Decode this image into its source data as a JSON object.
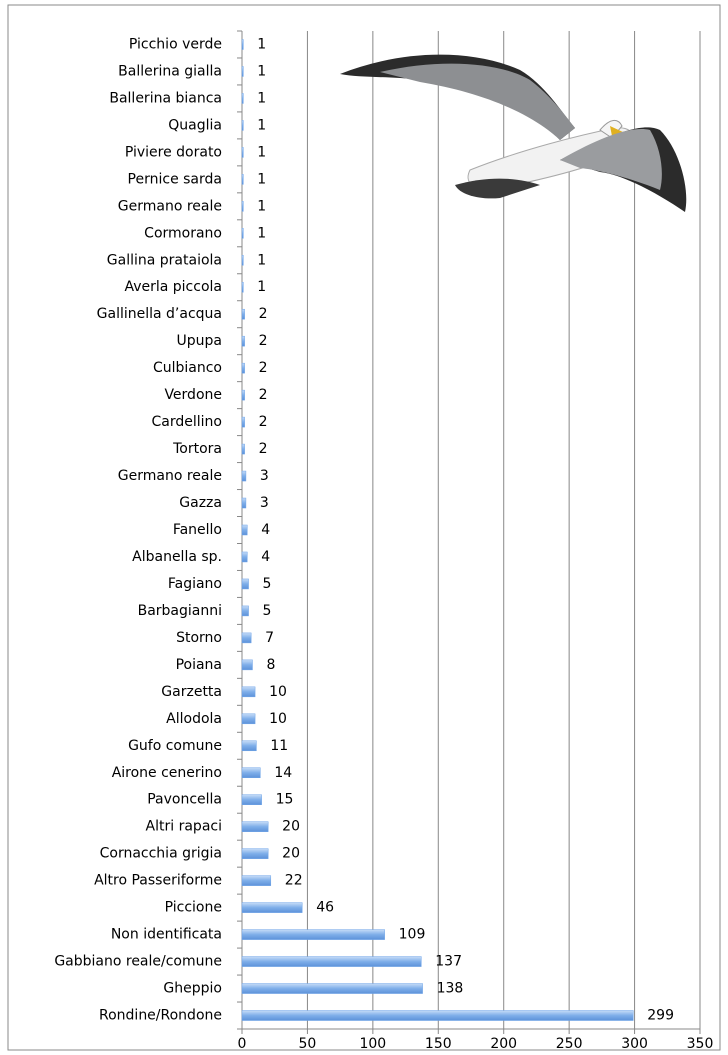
{
  "chart_data": {
    "type": "bar",
    "orientation": "horizontal",
    "categories": [
      "Picchio verde",
      "Ballerina gialla",
      "Ballerina bianca",
      "Quaglia",
      "Piviere dorato",
      "Pernice sarda",
      "Germano reale",
      "Cormorano",
      "Gallina prataiola",
      "Averla piccola",
      "Gallinella d’acqua",
      "Upupa",
      "Culbianco",
      "Verdone",
      "Cardellino",
      "Tortora",
      "Germano reale",
      "Gazza",
      "Fanello",
      "Albanella sp.",
      "Fagiano",
      "Barbagianni",
      "Storno",
      "Poiana",
      "Garzetta",
      "Allodola",
      "Gufo comune",
      "Airone cenerino",
      "Pavoncella",
      "Altri rapaci",
      "Cornacchia grigia",
      "Altro Passeriforme",
      "Piccione",
      "Non identificata",
      "Gabbiano reale/comune",
      "Gheppio",
      "Rondine/Rondone"
    ],
    "values": [
      1,
      1,
      1,
      1,
      1,
      1,
      1,
      1,
      1,
      1,
      2,
      2,
      2,
      2,
      2,
      2,
      3,
      3,
      4,
      4,
      5,
      5,
      7,
      8,
      10,
      10,
      11,
      14,
      15,
      20,
      20,
      22,
      46,
      109,
      137,
      138,
      299
    ],
    "color": "#6fa4e8",
    "xlim": [
      0,
      350
    ],
    "xticks": [
      0,
      50,
      100,
      150,
      200,
      250,
      300,
      350
    ],
    "grid": true
  }
}
